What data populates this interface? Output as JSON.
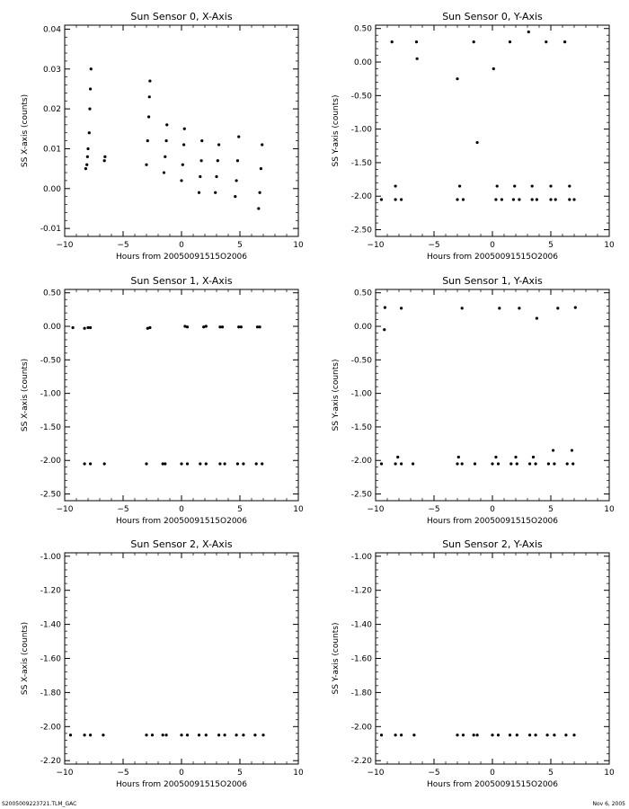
{
  "footer": {
    "left": "S2005009223721.TLM_GAC",
    "right": "Nov  6, 2005"
  },
  "chart_data": [
    {
      "type": "scatter",
      "title": "Sun Sensor 0, X-Axis",
      "xlabel": "Hours from 20050091515O2006",
      "ylabel": "SS X-axis (counts)",
      "xlim": [
        -10,
        10
      ],
      "ylim": [
        -0.012,
        0.041
      ],
      "xticks": [
        -10,
        -5,
        0,
        5,
        10
      ],
      "yticks": [
        -0.01,
        0.0,
        0.01,
        0.02,
        0.03,
        0.04
      ],
      "ytick_labels": [
        "-0.01",
        "0.00",
        "0.01",
        "0.02",
        "0.03",
        "0.04"
      ],
      "grid": false,
      "points": [
        [
          -8.1,
          0.006
        ],
        [
          -8.05,
          0.008
        ],
        [
          -8.0,
          0.01
        ],
        [
          -7.9,
          0.014
        ],
        [
          -7.85,
          0.02
        ],
        [
          -7.8,
          0.025
        ],
        [
          -7.75,
          0.03
        ],
        [
          -8.2,
          0.005
        ],
        [
          -6.6,
          0.007
        ],
        [
          -6.55,
          0.008
        ],
        [
          -3.0,
          0.006
        ],
        [
          -2.9,
          0.012
        ],
        [
          -2.8,
          0.018
        ],
        [
          -2.75,
          0.023
        ],
        [
          -2.7,
          0.027
        ],
        [
          -1.5,
          0.004
        ],
        [
          -1.4,
          0.008
        ],
        [
          -1.3,
          0.012
        ],
        [
          -1.25,
          0.016
        ],
        [
          0.0,
          0.002
        ],
        [
          0.1,
          0.006
        ],
        [
          0.2,
          0.011
        ],
        [
          0.25,
          0.015
        ],
        [
          1.5,
          -0.001
        ],
        [
          1.6,
          0.003
        ],
        [
          1.7,
          0.007
        ],
        [
          1.75,
          0.012
        ],
        [
          2.9,
          -0.001
        ],
        [
          3.0,
          0.003
        ],
        [
          3.1,
          0.007
        ],
        [
          3.2,
          0.011
        ],
        [
          4.6,
          -0.002
        ],
        [
          4.7,
          0.002
        ],
        [
          4.8,
          0.007
        ],
        [
          4.9,
          0.013
        ],
        [
          6.6,
          -0.005
        ],
        [
          6.7,
          -0.001
        ],
        [
          6.8,
          0.005
        ],
        [
          6.9,
          0.011
        ]
      ]
    },
    {
      "type": "scatter",
      "title": "Sun Sensor 0, Y-Axis",
      "xlabel": "Hours from 20050091515O2006",
      "ylabel": "SS Y-axis (counts)",
      "xlim": [
        -10,
        10
      ],
      "ylim": [
        -2.6,
        0.55
      ],
      "xticks": [
        -10,
        -5,
        0,
        5,
        10
      ],
      "yticks": [
        -2.5,
        -2.0,
        -1.5,
        -1.0,
        -0.5,
        0.0,
        0.5
      ],
      "ytick_labels": [
        "-2.50",
        "-2.00",
        "-1.50",
        "-1.00",
        "-0.50",
        "0.00",
        "0.50"
      ],
      "grid": false,
      "points": [
        [
          -8.6,
          0.3
        ],
        [
          -8.3,
          -1.85
        ],
        [
          -6.5,
          0.3
        ],
        [
          -6.45,
          0.05
        ],
        [
          -3.0,
          -0.25
        ],
        [
          -2.8,
          -1.85
        ],
        [
          -1.6,
          0.3
        ],
        [
          -1.3,
          -1.2
        ],
        [
          0.1,
          -0.1
        ],
        [
          0.4,
          -1.85
        ],
        [
          1.5,
          0.3
        ],
        [
          1.9,
          -1.85
        ],
        [
          3.1,
          0.45
        ],
        [
          3.4,
          -1.85
        ],
        [
          4.6,
          0.3
        ],
        [
          5.0,
          -1.85
        ],
        [
          6.2,
          0.3
        ],
        [
          6.6,
          -1.85
        ],
        [
          -9.5,
          -2.05
        ],
        [
          -8.3,
          -2.05
        ],
        [
          -7.8,
          -2.05
        ],
        [
          -3.0,
          -2.05
        ],
        [
          -2.5,
          -2.05
        ],
        [
          0.3,
          -2.05
        ],
        [
          0.8,
          -2.05
        ],
        [
          1.8,
          -2.05
        ],
        [
          2.3,
          -2.05
        ],
        [
          3.4,
          -2.05
        ],
        [
          3.8,
          -2.05
        ],
        [
          5.0,
          -2.05
        ],
        [
          5.4,
          -2.05
        ],
        [
          6.6,
          -2.05
        ],
        [
          7.0,
          -2.05
        ]
      ]
    },
    {
      "type": "scatter",
      "title": "Sun Sensor 1, X-Axis",
      "xlabel": "Hours from 20050091515O2006",
      "ylabel": "SS X-axis (counts)",
      "xlim": [
        -10,
        10
      ],
      "ylim": [
        -2.6,
        0.55
      ],
      "xticks": [
        -10,
        -5,
        0,
        5,
        10
      ],
      "yticks": [
        -2.5,
        -2.0,
        -1.5,
        -1.0,
        -0.5,
        0.0,
        0.5
      ],
      "ytick_labels": [
        "-2.50",
        "-2.00",
        "-1.50",
        "-1.00",
        "-0.50",
        "0.00",
        "0.50"
      ],
      "grid": false,
      "points": [
        [
          -9.3,
          -0.02
        ],
        [
          -8.3,
          -0.03
        ],
        [
          -8.0,
          -0.02
        ],
        [
          -7.8,
          -0.02
        ],
        [
          -2.9,
          -0.03
        ],
        [
          -2.7,
          -0.02
        ],
        [
          0.3,
          0.0
        ],
        [
          0.5,
          -0.01
        ],
        [
          1.9,
          -0.01
        ],
        [
          2.1,
          0.0
        ],
        [
          3.3,
          -0.01
        ],
        [
          3.5,
          -0.01
        ],
        [
          4.9,
          -0.01
        ],
        [
          5.1,
          -0.01
        ],
        [
          6.5,
          -0.01
        ],
        [
          6.7,
          -0.01
        ],
        [
          -8.3,
          -2.05
        ],
        [
          -7.8,
          -2.05
        ],
        [
          -6.6,
          -2.05
        ],
        [
          -3.0,
          -2.05
        ],
        [
          -1.6,
          -2.05
        ],
        [
          -1.4,
          -2.05
        ],
        [
          0.0,
          -2.05
        ],
        [
          0.5,
          -2.05
        ],
        [
          1.6,
          -2.05
        ],
        [
          2.1,
          -2.05
        ],
        [
          3.3,
          -2.05
        ],
        [
          3.7,
          -2.05
        ],
        [
          4.8,
          -2.05
        ],
        [
          5.3,
          -2.05
        ],
        [
          6.4,
          -2.05
        ],
        [
          6.9,
          -2.05
        ]
      ]
    },
    {
      "type": "scatter",
      "title": "Sun Sensor 1, Y-Axis",
      "xlabel": "Hours from 20050091515O2006",
      "ylabel": "SS Y-axis (counts)",
      "xlim": [
        -10,
        10
      ],
      "ylim": [
        -2.6,
        0.55
      ],
      "xticks": [
        -10,
        -5,
        0,
        5,
        10
      ],
      "yticks": [
        -2.5,
        -2.0,
        -1.5,
        -1.0,
        -0.5,
        0.0,
        0.5
      ],
      "ytick_labels": [
        "-2.50",
        "-2.00",
        "-1.50",
        "-1.00",
        "-0.50",
        "0.00",
        "0.50"
      ],
      "grid": false,
      "points": [
        [
          -9.2,
          0.28
        ],
        [
          -9.25,
          -0.05
        ],
        [
          -7.8,
          0.27
        ],
        [
          -8.1,
          -1.95
        ],
        [
          -2.6,
          0.27
        ],
        [
          -2.9,
          -1.95
        ],
        [
          0.6,
          0.27
        ],
        [
          0.3,
          -1.95
        ],
        [
          2.3,
          0.27
        ],
        [
          2.0,
          -1.95
        ],
        [
          3.8,
          0.12
        ],
        [
          3.5,
          -1.95
        ],
        [
          5.6,
          0.27
        ],
        [
          5.2,
          -1.85
        ],
        [
          7.1,
          0.28
        ],
        [
          6.8,
          -1.85
        ],
        [
          -9.5,
          -2.05
        ],
        [
          -8.3,
          -2.05
        ],
        [
          -7.8,
          -2.05
        ],
        [
          -6.8,
          -2.05
        ],
        [
          -3.0,
          -2.05
        ],
        [
          -2.6,
          -2.05
        ],
        [
          -1.5,
          -2.05
        ],
        [
          0.0,
          -2.05
        ],
        [
          0.5,
          -2.05
        ],
        [
          1.6,
          -2.05
        ],
        [
          2.1,
          -2.05
        ],
        [
          3.2,
          -2.05
        ],
        [
          3.7,
          -2.05
        ],
        [
          4.8,
          -2.05
        ],
        [
          5.3,
          -2.05
        ],
        [
          6.4,
          -2.05
        ],
        [
          6.9,
          -2.05
        ]
      ]
    },
    {
      "type": "scatter",
      "title": "Sun Sensor 2, X-Axis",
      "xlabel": "Hours from 20050091515O2006",
      "ylabel": "SS X-axis (counts)",
      "xlim": [
        -10,
        10
      ],
      "ylim": [
        -2.22,
        -0.98
      ],
      "xticks": [
        -10,
        -5,
        0,
        5,
        10
      ],
      "yticks": [
        -2.2,
        -2.0,
        -1.8,
        -1.6,
        -1.4,
        -1.2,
        -1.0
      ],
      "ytick_labels": [
        "-2.20",
        "-2.00",
        "-1.80",
        "-1.60",
        "-1.40",
        "-1.20",
        "-1.00"
      ],
      "grid": false,
      "points": [
        [
          -9.5,
          -2.05
        ],
        [
          -8.3,
          -2.05
        ],
        [
          -7.8,
          -2.05
        ],
        [
          -6.7,
          -2.05
        ],
        [
          -3.0,
          -2.05
        ],
        [
          -2.5,
          -2.05
        ],
        [
          -1.6,
          -2.05
        ],
        [
          -1.3,
          -2.05
        ],
        [
          0.0,
          -2.05
        ],
        [
          0.5,
          -2.05
        ],
        [
          1.5,
          -2.05
        ],
        [
          2.1,
          -2.05
        ],
        [
          3.2,
          -2.05
        ],
        [
          3.7,
          -2.05
        ],
        [
          4.7,
          -2.05
        ],
        [
          5.3,
          -2.05
        ],
        [
          6.3,
          -2.05
        ],
        [
          7.0,
          -2.05
        ]
      ]
    },
    {
      "type": "scatter",
      "title": "Sun Sensor 2, Y-Axis",
      "xlabel": "Hours from 20050091515O2006",
      "ylabel": "SS Y-axis (counts)",
      "xlim": [
        -10,
        10
      ],
      "ylim": [
        -2.22,
        -0.98
      ],
      "xticks": [
        -10,
        -5,
        0,
        5,
        10
      ],
      "yticks": [
        -2.2,
        -2.0,
        -1.8,
        -1.6,
        -1.4,
        -1.2,
        -1.0
      ],
      "ytick_labels": [
        "-2.20",
        "-2.00",
        "-1.80",
        "-1.60",
        "-1.40",
        "-1.20",
        "-1.00"
      ],
      "grid": false,
      "points": [
        [
          -9.5,
          -2.05
        ],
        [
          -8.3,
          -2.05
        ],
        [
          -7.8,
          -2.05
        ],
        [
          -6.7,
          -2.05
        ],
        [
          -3.0,
          -2.05
        ],
        [
          -2.5,
          -2.05
        ],
        [
          -1.6,
          -2.05
        ],
        [
          -1.3,
          -2.05
        ],
        [
          0.0,
          -2.05
        ],
        [
          0.5,
          -2.05
        ],
        [
          1.5,
          -2.05
        ],
        [
          2.1,
          -2.05
        ],
        [
          3.2,
          -2.05
        ],
        [
          3.7,
          -2.05
        ],
        [
          4.7,
          -2.05
        ],
        [
          5.3,
          -2.05
        ],
        [
          6.3,
          -2.05
        ],
        [
          7.0,
          -2.05
        ]
      ]
    }
  ]
}
